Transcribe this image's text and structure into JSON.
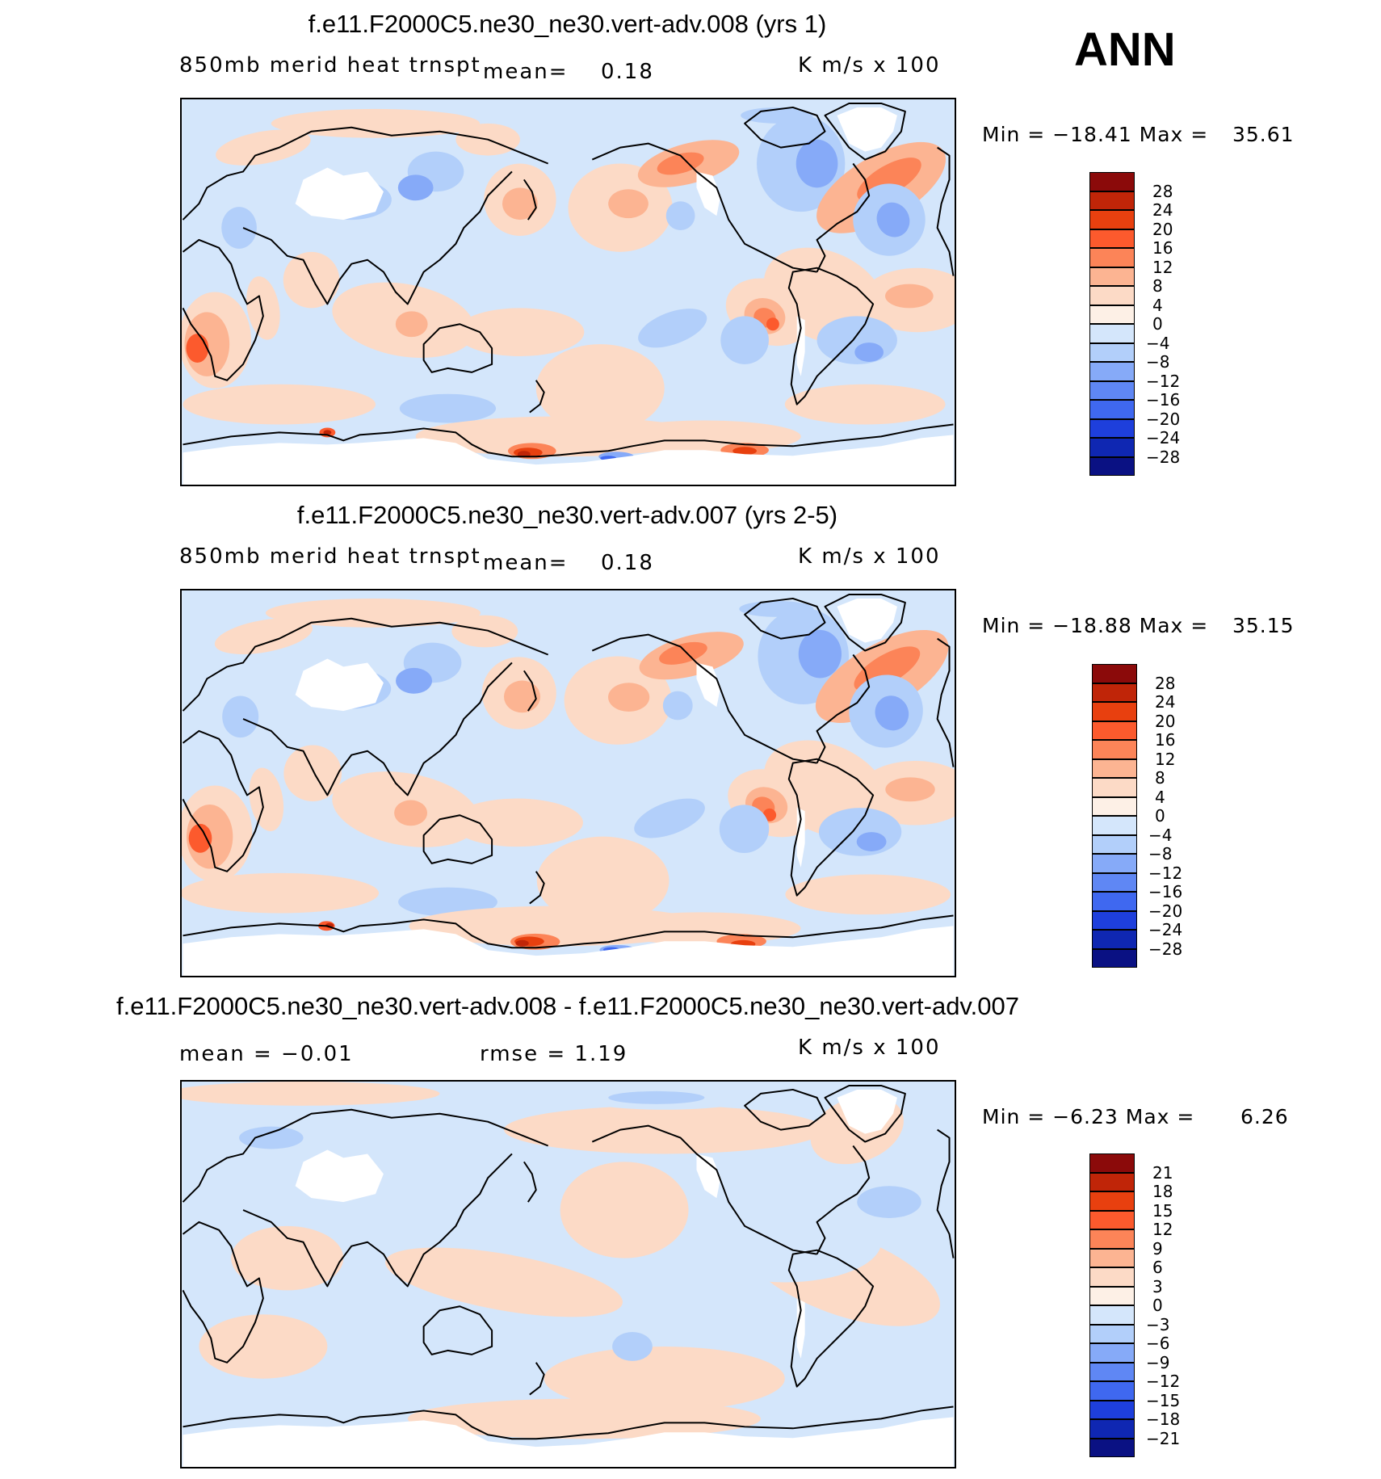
{
  "season": "ANN",
  "palette": {
    "28": "#8b0a0a",
    "24": "#c02508",
    "20": "#e8400f",
    "16": "#fc5a2d",
    "12": "#fc8458",
    "8": "#fcb492",
    "4": "#fcdac6",
    "0": "#fdf0e6",
    "m4": "#d4e6fb",
    "m8": "#b2cffa",
    "m12": "#86aaf8",
    "m16": "#5f87f4",
    "m20": "#3f68f0",
    "m24": "#1e3fdc",
    "m28": "#0f27b2",
    "m32": "#0a1183",
    "land": "#ffffff",
    "coast": "#000000"
  },
  "panels": [
    {
      "id": "top",
      "title": "f.e11.F2000C5.ne30_ne30.vert-adv.008 (yrs 1)",
      "left_label": "850mb merid heat trnspt",
      "mean_label": "mean=",
      "mean_value": "0.18",
      "units": "K m/s x 100",
      "min_text": "Min = −18.41 Max =",
      "max_value": "35.61",
      "colorbar_labels": [
        "28",
        "24",
        "20",
        "16",
        "12",
        "8",
        "4",
        "0",
        "−4",
        "−8",
        "−12",
        "−16",
        "−20",
        "−24",
        "−28"
      ]
    },
    {
      "id": "middle",
      "title": "f.e11.F2000C5.ne30_ne30.vert-adv.007 (yrs 2-5)",
      "left_label": "850mb merid heat trnspt",
      "mean_label": "mean=",
      "mean_value": "0.18",
      "units": "K m/s x 100",
      "min_text": "Min = −18.88 Max =",
      "max_value": "35.15",
      "colorbar_labels": [
        "28",
        "24",
        "20",
        "16",
        "12",
        "8",
        "4",
        "0",
        "−4",
        "−8",
        "−12",
        "−16",
        "−20",
        "−24",
        "−28"
      ]
    },
    {
      "id": "diff",
      "title": "f.e11.F2000C5.ne30_ne30.vert-adv.008 - f.e11.F2000C5.ne30_ne30.vert-adv.007",
      "left_label": "mean = −0.01",
      "rmse_label": "rmse = 1.19",
      "units": "K m/s x 100",
      "min_text": "Min = −6.23 Max =",
      "max_value": "6.26",
      "colorbar_labels": [
        "21",
        "18",
        "15",
        "12",
        "9",
        "6",
        "3",
        "0",
        "−3",
        "−6",
        "−9",
        "−12",
        "−15",
        "−18",
        "−21"
      ]
    }
  ]
}
